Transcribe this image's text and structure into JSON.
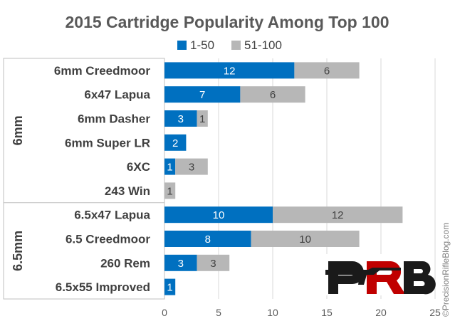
{
  "chart_data": {
    "type": "bar",
    "orientation": "horizontal",
    "stacked": true,
    "title": "2015 Cartridge Popularity Among Top 100",
    "categories": [
      "6mm Creedmoor",
      "6x47 Lapua",
      "6mm Dasher",
      "6mm Super LR",
      "6XC",
      "243 Win",
      "6.5x47 Lapua",
      "6.5 Creedmoor",
      "260 Rem",
      "6.5x55 Improved"
    ],
    "groups": [
      {
        "label": "6mm",
        "categories": [
          "6mm Creedmoor",
          "6x47 Lapua",
          "6mm Dasher",
          "6mm Super LR",
          "6XC",
          "243 Win"
        ]
      },
      {
        "label": "6.5mm",
        "categories": [
          "6.5x47 Lapua",
          "6.5 Creedmoor",
          "260 Rem",
          "6.5x55 Improved"
        ]
      }
    ],
    "series": [
      {
        "name": "1-50",
        "color": "#0070C0",
        "label_color": "#ffffff",
        "values": [
          12,
          7,
          3,
          2,
          1,
          0,
          10,
          8,
          3,
          1
        ]
      },
      {
        "name": "51-100",
        "color": "#B7B7B7",
        "label_color": "#404040",
        "values": [
          6,
          6,
          1,
          0,
          3,
          1,
          12,
          10,
          3,
          0
        ]
      }
    ],
    "xlim": [
      0,
      25
    ],
    "xticks": [
      "0",
      "5",
      "10",
      "15",
      "20",
      "25"
    ],
    "grid": true,
    "legend_position": "top-center",
    "watermark": "©PrecisionRifleBlog.com",
    "logo": "PRB"
  }
}
